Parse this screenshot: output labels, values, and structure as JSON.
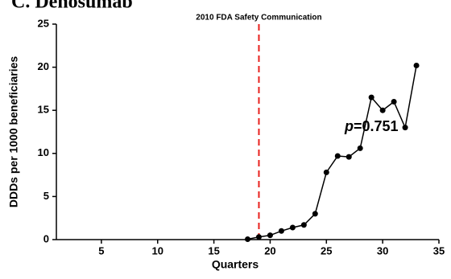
{
  "chart_data": {
    "type": "line",
    "title": "C. Denosumab",
    "x_label": "Quarters",
    "y_label": "DDDs per 1000 beneficiaries",
    "series": [
      {
        "name": "Denosumab",
        "color": "#000000",
        "x": [
          18,
          19,
          20,
          21,
          22,
          23,
          24,
          25,
          26,
          27,
          28,
          29,
          30,
          31,
          32,
          33
        ],
        "values": [
          0.05,
          0.3,
          0.5,
          1.0,
          1.4,
          1.7,
          3.0,
          7.8,
          9.7,
          9.6,
          10.6,
          16.5,
          15.0,
          16.0,
          13.0,
          20.2
        ]
      }
    ],
    "xlim": [
      1,
      35
    ],
    "xticks": [
      5,
      10,
      15,
      20,
      25,
      30,
      35
    ],
    "ylim": [
      0,
      25
    ],
    "yticks": [
      0,
      5,
      10,
      15,
      20,
      25
    ],
    "grid": false,
    "event_line": {
      "x": 19,
      "label": "2010 FDA Safety Communication",
      "color": "#e8201c"
    },
    "p_annotation": {
      "symbol": "p",
      "text": "=0.751"
    }
  }
}
